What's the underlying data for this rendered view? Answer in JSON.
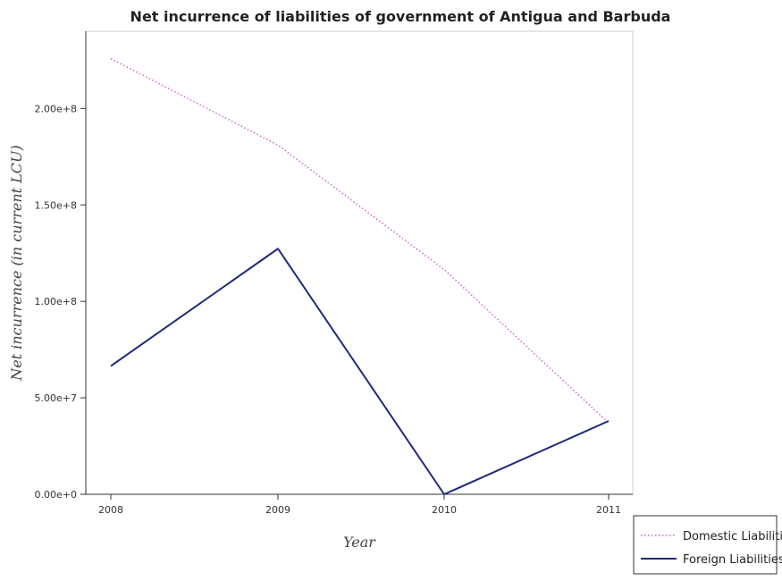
{
  "chart_data": {
    "type": "line",
    "title": "Net incurrence of liabilities of government of Antigua and Barbuda",
    "xlabel": "Year",
    "ylabel": "Net incurrence (in current LCU)",
    "categories": [
      "2008",
      "2009",
      "2010",
      "2011"
    ],
    "ylim": [
      0,
      240000000
    ],
    "yticks": [
      0,
      50000000,
      100000000,
      150000000,
      200000000
    ],
    "ytick_labels": [
      "0.00e+0",
      "5.00e+7",
      "1.00e+8",
      "1.50e+8",
      "2.00e+8"
    ],
    "grid": false,
    "legend_position": "bottom-right",
    "series": [
      {
        "name": "Domestic Liabilities",
        "color": "#cc66cc",
        "style": "dotted",
        "values": [
          225800000,
          181000000,
          116500000,
          37000000
        ]
      },
      {
        "name": "Foreign Liabilities",
        "color": "#1f2a7a",
        "style": "solid",
        "values": [
          66500000,
          127300000,
          0,
          38000000
        ]
      }
    ]
  }
}
